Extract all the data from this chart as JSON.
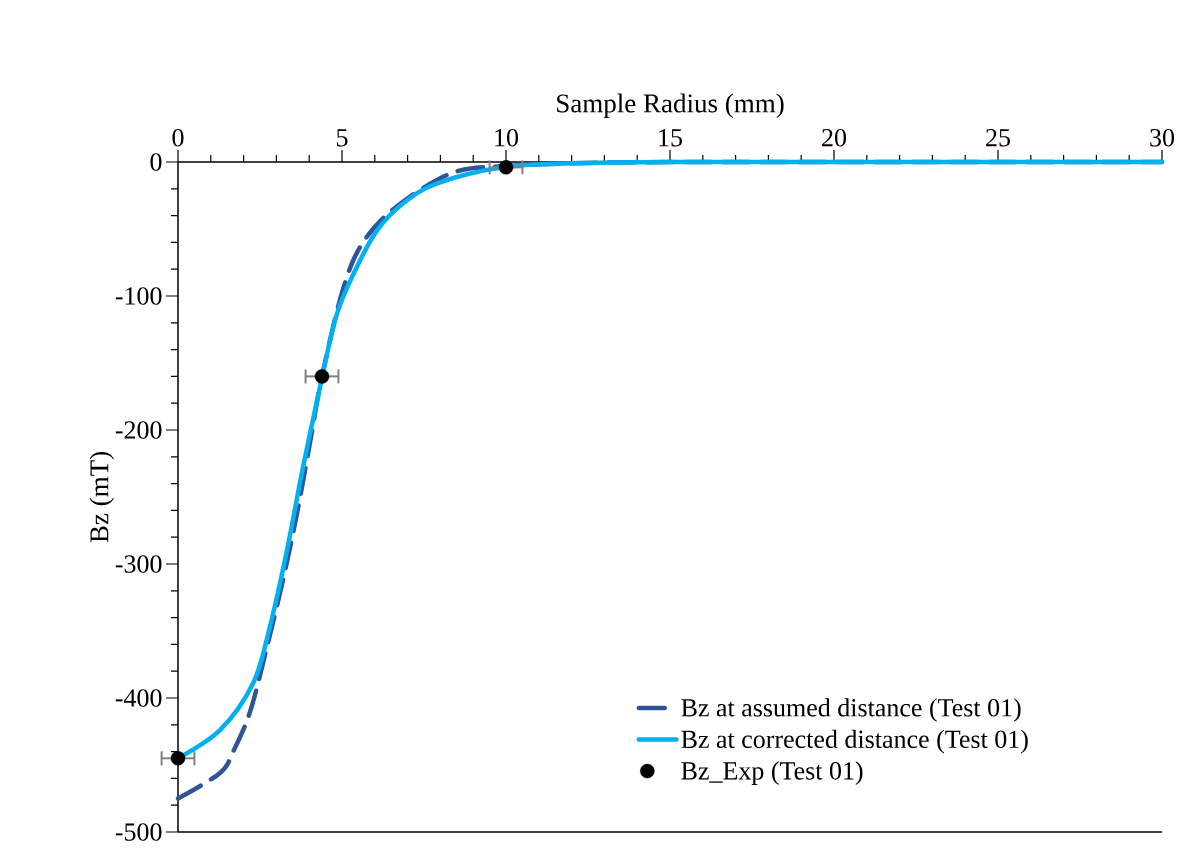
{
  "chart_data": {
    "type": "line",
    "xlabel": "Sample Radius  (mm)",
    "ylabel": "Bz  (mT)",
    "xlim": [
      0,
      30
    ],
    "xticks": [
      0,
      5,
      10,
      15,
      20,
      25,
      30
    ],
    "ylim": [
      -500,
      0
    ],
    "yticks": [
      -500,
      -400,
      -300,
      -200,
      -100,
      0
    ],
    "legend": "bottom right",
    "series": [
      {
        "name": "Bz at assumed distance (Test 01)",
        "line_style": "dashed",
        "color": "#2f5597",
        "x": [
          0,
          1.28,
          1.68,
          2.2,
          2.71,
          3.2,
          3.63,
          4.02,
          4.39,
          5.03,
          5.64,
          6.68,
          8.38,
          10,
          12,
          15,
          20,
          25,
          30
        ],
        "values": [
          -475,
          -456,
          -440,
          -410,
          -362,
          -312,
          -262,
          -210,
          -160,
          -95,
          -60,
          -33,
          -8,
          -3,
          -1,
          0,
          0,
          0,
          0
        ]
      },
      {
        "name": "Bz at corrected distance (Test 01)",
        "line_style": "solid",
        "color": "#00b0f0",
        "x": [
          0,
          1.28,
          2.29,
          2.8,
          3.32,
          3.81,
          4.39,
          4.85,
          5.46,
          6.07,
          6.86,
          7.9,
          9.9,
          12,
          15,
          20,
          25,
          30
        ],
        "values": [
          -445,
          -424,
          -389,
          -347,
          -290,
          -228,
          -161,
          -113,
          -78,
          -51,
          -31,
          -16,
          -4,
          -1,
          0,
          0,
          0,
          0
        ]
      },
      {
        "name": "Bz_Exp (Test 01)",
        "type": "scatter",
        "marker": "circle",
        "color": "#000000",
        "x": [
          0,
          4.39,
          10
        ],
        "values": [
          -445,
          -160,
          -4
        ],
        "xerrors": [
          0.5,
          0.5,
          0.5
        ]
      }
    ]
  }
}
